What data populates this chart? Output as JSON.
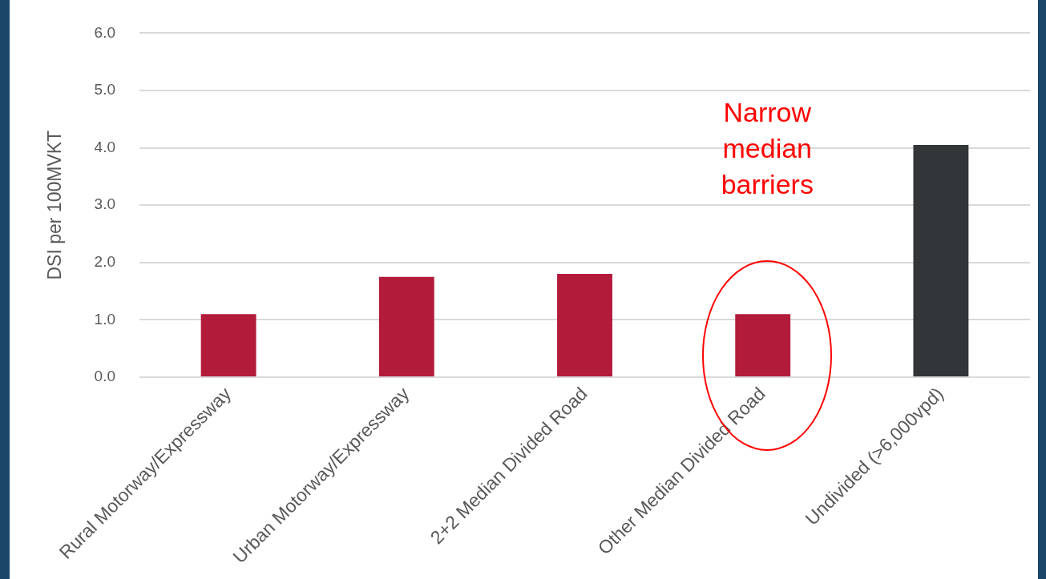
{
  "chart_data": {
    "type": "bar",
    "ylabel": "DSI per 100MVKT",
    "categories": [
      "Rural Motorway/Expressway",
      "Urban Motorway/Expressway",
      "2+2 Median Divided Road",
      "Other Median Divided Road",
      "Undivided (>6,000vpd)"
    ],
    "values": [
      1.1,
      1.75,
      1.8,
      1.1,
      4.05
    ],
    "colors": [
      "#b31b3b",
      "#b31b3b",
      "#b31b3b",
      "#b31b3b",
      "#323638"
    ],
    "ylim": [
      0,
      6
    ],
    "yticks": [
      {
        "value": 0,
        "label": "0.0"
      },
      {
        "value": 1,
        "label": "1.0"
      },
      {
        "value": 2,
        "label": "2.0"
      },
      {
        "value": 3,
        "label": "3.0"
      },
      {
        "value": 4,
        "label": "4.0"
      },
      {
        "value": 5,
        "label": "5.0"
      },
      {
        "value": 6,
        "label": "6.0"
      }
    ],
    "grid": "y",
    "annotations": [
      "Narrow median barriers"
    ]
  }
}
